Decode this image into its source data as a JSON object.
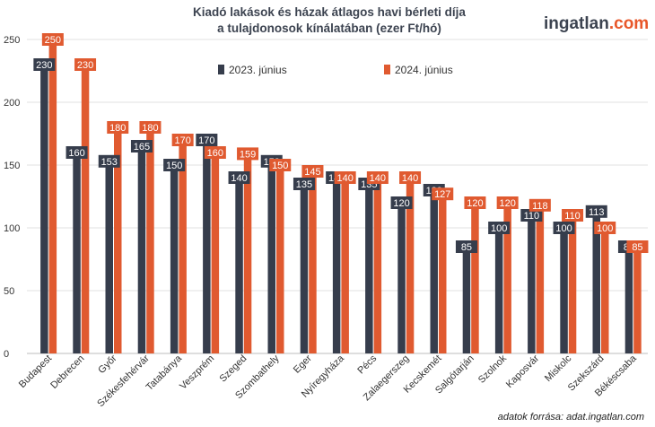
{
  "title": {
    "line1": "Kiadó lakások és házak átlagos havi bérleti díja",
    "line2": "a tulajdonosok kínálatában (ezer Ft/hó)"
  },
  "logo": {
    "part1": "ingatlan",
    "part2": ".com",
    "color1": "#3c4350",
    "color2": "#e8572a"
  },
  "source": "adatok forrása: adat.ingatlan.com",
  "colors": {
    "series2023": "#363d4c",
    "series2024": "#e05a30",
    "grid": "#e2e2e2"
  },
  "chart_data": {
    "type": "bar",
    "categories": [
      "Budapest",
      "Debrecen",
      "Győr",
      "Székesfehérvár",
      "Tatabánya",
      "Veszprém",
      "Szeged",
      "Szombathely",
      "Eger",
      "Nyíregyháza",
      "Pécs",
      "Zalaegerszeg",
      "Kecskemét",
      "Salgótarján",
      "Szolnok",
      "Kaposvár",
      "Miskolc",
      "Szekszárd",
      "Békéscsaba"
    ],
    "series": [
      {
        "name": "2023. június",
        "values": [
          230,
          160,
          153,
          165,
          150,
          170,
          140,
          153,
          135,
          140,
          135,
          120,
          130,
          85,
          100,
          110,
          100,
          113,
          85
        ]
      },
      {
        "name": "2024. június",
        "values": [
          250,
          230,
          180,
          180,
          170,
          160,
          159,
          150,
          145,
          140,
          140,
          140,
          127,
          120,
          120,
          118,
          110,
          100,
          85
        ]
      }
    ],
    "yticks": [
      "0",
      "50",
      "100",
      "150",
      "200",
      "250"
    ],
    "ylim": [
      0,
      250
    ],
    "grid": true,
    "legend_position": "top"
  }
}
